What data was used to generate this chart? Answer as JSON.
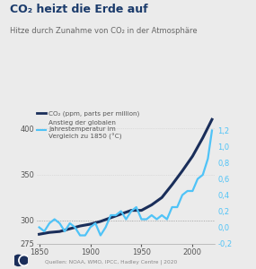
{
  "title": "CO₂ heizt die Erde auf",
  "subtitle": "Hitze durch Zunahme von CO₂ in der Atmosphäre",
  "source": "Quellen: NOAA, WMO, IPCC, Hadley Centre | 2020",
  "bg_color": "#ebebeb",
  "title_color": "#1a3a6b",
  "legend1": "CO₂ (ppm, parts per million)",
  "legend2": "Anstieg der globalen\nJahrestemperatur im\nVergleich zu 1850 (°C)",
  "co2_color": "#1a2e5a",
  "temp_color": "#4fc3f7",
  "co2_years": [
    1850,
    1860,
    1870,
    1880,
    1890,
    1900,
    1910,
    1920,
    1930,
    1940,
    1950,
    1960,
    1970,
    1980,
    1990,
    2000,
    2010,
    2019
  ],
  "co2_values": [
    285,
    287,
    288,
    291,
    294,
    296,
    299,
    303,
    307,
    311,
    311,
    317,
    325,
    339,
    354,
    370,
    390,
    410
  ],
  "temp_years": [
    1850,
    1855,
    1860,
    1865,
    1870,
    1875,
    1880,
    1885,
    1890,
    1895,
    1900,
    1905,
    1910,
    1915,
    1920,
    1925,
    1930,
    1935,
    1940,
    1945,
    1950,
    1955,
    1960,
    1965,
    1970,
    1975,
    1980,
    1985,
    1990,
    1995,
    2000,
    2005,
    2010,
    2015,
    2019
  ],
  "temp_values": [
    0.0,
    -0.05,
    0.05,
    0.1,
    0.05,
    -0.05,
    0.05,
    0.0,
    -0.1,
    -0.1,
    0.0,
    0.05,
    -0.1,
    0.0,
    0.15,
    0.15,
    0.2,
    0.1,
    0.2,
    0.25,
    0.1,
    0.1,
    0.15,
    0.1,
    0.15,
    0.1,
    0.25,
    0.25,
    0.4,
    0.45,
    0.45,
    0.6,
    0.65,
    0.85,
    1.2
  ],
  "ylim_left": [
    275,
    420
  ],
  "ylim_right": [
    -0.2,
    1.45
  ],
  "yticks_left": [
    275,
    300,
    350,
    400
  ],
  "yticks_right": [
    -0.2,
    0.0,
    0.2,
    0.4,
    0.6,
    0.8,
    1.0,
    1.2
  ],
  "xlim": [
    1848,
    2022
  ],
  "xticks": [
    1850,
    1900,
    1950,
    2000
  ]
}
